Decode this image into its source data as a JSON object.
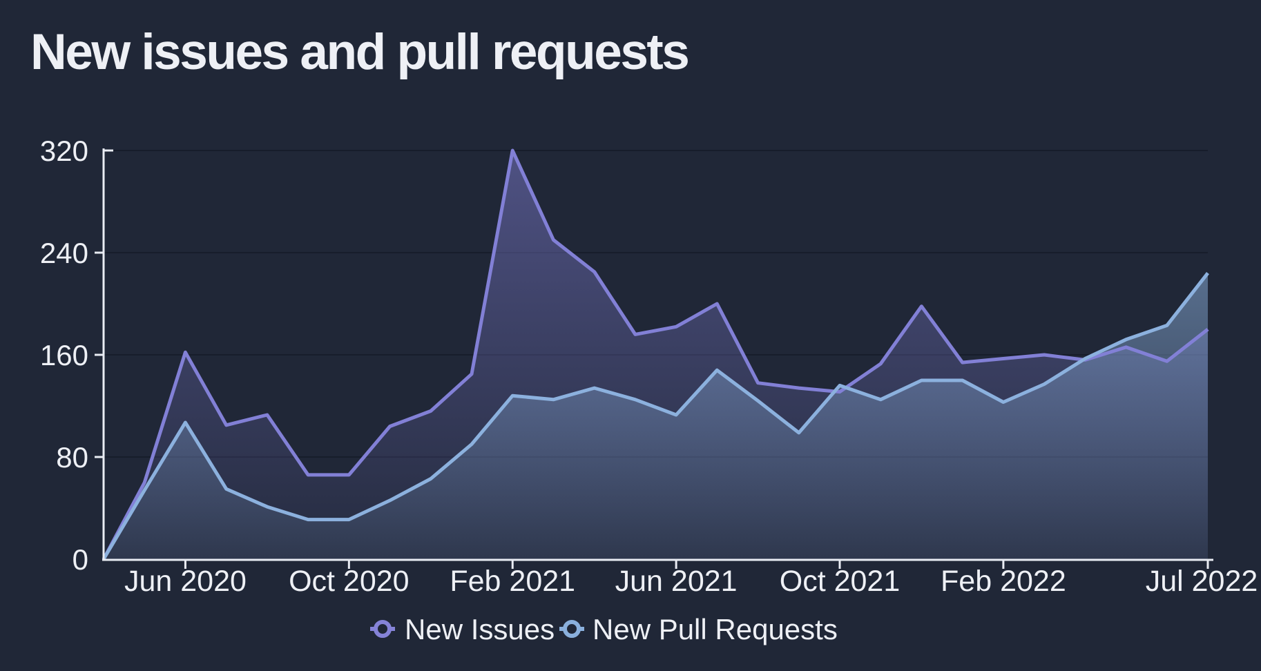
{
  "title": "New issues and pull requests",
  "colors": {
    "background": "#202737",
    "issues": "#8280d6",
    "pull_requests": "#8cb1de",
    "axis": "#e9ecf3",
    "grid": "#0e1420",
    "title_text": "#fdfdfe"
  },
  "legend": {
    "items": [
      {
        "label": "New Issues",
        "color": "#8583d8"
      },
      {
        "label": "New Pull Requests",
        "color": "#8ab0dd"
      }
    ]
  },
  "chart_data": {
    "type": "area",
    "title": "New issues and pull requests",
    "xlabel": "",
    "ylabel": "",
    "ylim": [
      0,
      320
    ],
    "y_ticks": [
      0,
      80,
      160,
      240,
      320
    ],
    "grid": "horizontal",
    "legend_position": "bottom",
    "x": [
      "Apr 2020",
      "May 2020",
      "Jun 2020",
      "Jul 2020",
      "Aug 2020",
      "Sep 2020",
      "Oct 2020",
      "Nov 2020",
      "Dec 2020",
      "Jan 2021",
      "Feb 2021",
      "Mar 2021",
      "Apr 2021",
      "May 2021",
      "Jun 2021",
      "Jul 2021",
      "Aug 2021",
      "Sep 2021",
      "Oct 2021",
      "Nov 2021",
      "Dec 2021",
      "Jan 2022",
      "Feb 2022",
      "Mar 2022",
      "Apr 2022",
      "May 2022",
      "Jun 2022",
      "Jul 2022"
    ],
    "x_ticks": [
      {
        "index": 2,
        "label": "Jun 2020"
      },
      {
        "index": 6,
        "label": "Oct 2020"
      },
      {
        "index": 10,
        "label": "Feb 2021"
      },
      {
        "index": 14,
        "label": "Jun 2021"
      },
      {
        "index": 18,
        "label": "Oct 2021"
      },
      {
        "index": 22,
        "label": "Feb 2022"
      },
      {
        "index": 27,
        "label": "Jul 2022"
      }
    ],
    "series": [
      {
        "name": "New Issues",
        "color": "#8280d6",
        "values": [
          0,
          60,
          162,
          105,
          113,
          66,
          66,
          104,
          116,
          145,
          320,
          250,
          225,
          176,
          182,
          200,
          138,
          134,
          131,
          153,
          198,
          154,
          157,
          160,
          156,
          166,
          155,
          180
        ]
      },
      {
        "name": "New Pull Requests",
        "color": "#8cb1de",
        "values": [
          0,
          54,
          107,
          55,
          41,
          31,
          31,
          46,
          63,
          90,
          128,
          125,
          134,
          125,
          113,
          148,
          124,
          99,
          136,
          125,
          140,
          140,
          123,
          137,
          157,
          172,
          183,
          224
        ]
      }
    ]
  }
}
